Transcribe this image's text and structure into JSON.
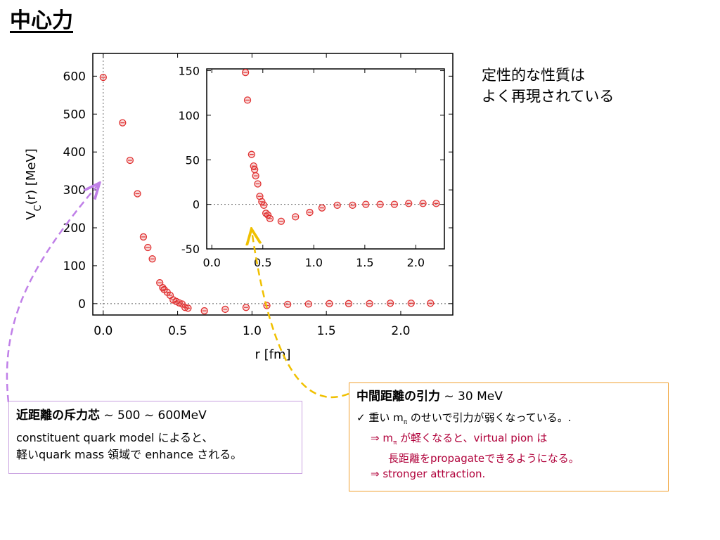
{
  "slide": {
    "title": "中心力"
  },
  "note": {
    "line1": "定性的な性質は",
    "line2": "よく再現されている"
  },
  "chart_data": [
    {
      "type": "scatter",
      "xlabel": "r [fm]",
      "ylabel_main": "V",
      "ylabel_sub": "C",
      "ylabel_rest": "(r) [MeV]",
      "xlim": [
        -0.07,
        2.35
      ],
      "ylim": [
        -30,
        660
      ],
      "xticks": [
        "0.0",
        "0.5",
        "1.0",
        "1.5",
        "2.0"
      ],
      "xtick_values": [
        0,
        0.5,
        1.0,
        1.5,
        2.0
      ],
      "yticks": [
        "0",
        "100",
        "200",
        "300",
        "400",
        "500",
        "600"
      ],
      "ytick_values": [
        0,
        100,
        200,
        300,
        400,
        500,
        600
      ],
      "grid": false,
      "reference_lines": [
        "x=0",
        "y=0"
      ],
      "marker_color": "#e03030",
      "points": [
        [
          0.0,
          597
        ],
        [
          0.13,
          477
        ],
        [
          0.18,
          378
        ],
        [
          0.23,
          290
        ],
        [
          0.27,
          176
        ],
        [
          0.3,
          148
        ],
        [
          0.33,
          118
        ],
        [
          0.38,
          55
        ],
        [
          0.4,
          42
        ],
        [
          0.41,
          37
        ],
        [
          0.43,
          30
        ],
        [
          0.45,
          22
        ],
        [
          0.47,
          10
        ],
        [
          0.49,
          6
        ],
        [
          0.51,
          2
        ],
        [
          0.53,
          -1
        ],
        [
          0.55,
          -10
        ],
        [
          0.57,
          -12
        ],
        [
          0.68,
          -19
        ],
        [
          0.82,
          -15
        ],
        [
          0.96,
          -10
        ],
        [
          1.1,
          -5
        ],
        [
          1.24,
          -2
        ],
        [
          1.38,
          -1
        ],
        [
          1.52,
          0
        ],
        [
          1.65,
          0
        ],
        [
          1.79,
          0
        ],
        [
          1.93,
          1
        ],
        [
          2.07,
          1
        ],
        [
          2.2,
          1
        ]
      ]
    },
    {
      "type": "scatter",
      "xlim": [
        -0.05,
        2.28
      ],
      "ylim": [
        -50,
        152
      ],
      "xticks": [
        "0.0",
        "0.5",
        "1.0",
        "1.5",
        "2.0"
      ],
      "xtick_values": [
        0,
        0.5,
        1.0,
        1.5,
        2.0
      ],
      "yticks": [
        "-50",
        "0",
        "50",
        "100",
        "150"
      ],
      "ytick_values": [
        -50,
        0,
        50,
        100,
        150
      ],
      "grid": false,
      "reference_lines": [
        "y=0"
      ],
      "marker_color": "#e03030",
      "points": [
        [
          0.33,
          148
        ],
        [
          0.35,
          117
        ],
        [
          0.39,
          56
        ],
        [
          0.41,
          43
        ],
        [
          0.42,
          39
        ],
        [
          0.43,
          32
        ],
        [
          0.45,
          23
        ],
        [
          0.47,
          9
        ],
        [
          0.49,
          3
        ],
        [
          0.51,
          -1
        ],
        [
          0.53,
          -10
        ],
        [
          0.55,
          -12
        ],
        [
          0.57,
          -16
        ],
        [
          0.68,
          -19
        ],
        [
          0.82,
          -14
        ],
        [
          0.96,
          -9
        ],
        [
          1.08,
          -4
        ],
        [
          1.23,
          -1
        ],
        [
          1.38,
          -1
        ],
        [
          1.51,
          0
        ],
        [
          1.65,
          0
        ],
        [
          1.79,
          0
        ],
        [
          1.93,
          1
        ],
        [
          2.07,
          1
        ],
        [
          2.2,
          1
        ]
      ]
    }
  ],
  "box_short": {
    "heading": "近距離の斥力芯",
    "heading_value": " ~ 500 ~ 600MeV",
    "line1": "constituent quark model によると、",
    "line2": "軽いquark mass 領域で enhance される。"
  },
  "box_mid": {
    "heading": "中間距離の引力",
    "heading_value": " ~ 30 MeV",
    "line1_pre": "✓ 重い m",
    "line1_sub": "π",
    "line1_post": " のせいで引力が弱くなっている。.",
    "line2_pre": "⇒ m",
    "line2_sub": "π",
    "line2_post": " が軽くなると、virtual pion は",
    "line3": "長距離をpropagateできるようになる。",
    "line4": "⇒ stronger attraction."
  }
}
